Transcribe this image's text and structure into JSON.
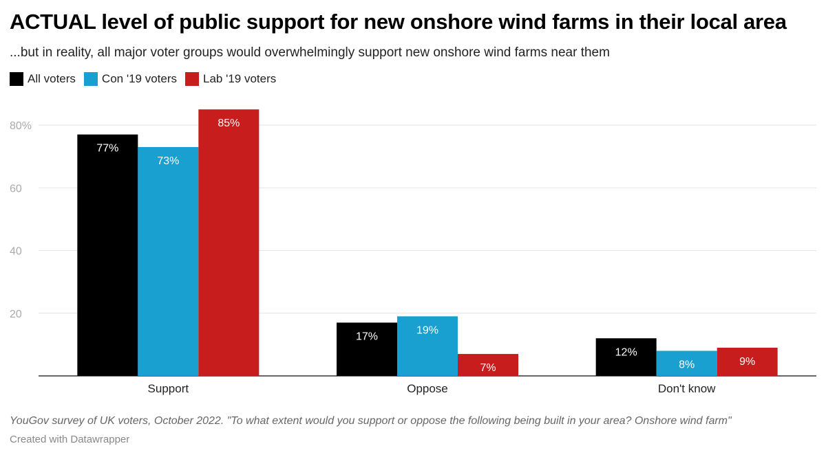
{
  "title": "ACTUAL level of public support for new onshore wind farms in their local area",
  "subtitle": "...but in reality, all major voter groups would overwhelmingly support new onshore wind farms near them",
  "footer": {
    "source": "YouGov survey of UK voters, October 2022. \"To what extent would you support or oppose the following being built in your area? Onshore wind farm\"",
    "credit": "Created with Datawrapper"
  },
  "chart_data": {
    "type": "bar",
    "title": "ACTUAL level of public support for new onshore wind farms in their local area",
    "xlabel": "",
    "ylabel": "",
    "ylim": [
      0,
      80
    ],
    "yticks": [
      {
        "value": 20,
        "label": "20"
      },
      {
        "value": 40,
        "label": "40"
      },
      {
        "value": 60,
        "label": "60"
      },
      {
        "value": 80,
        "label": "80%"
      }
    ],
    "grid": true,
    "legend_position": "top-left",
    "categories": [
      "Support",
      "Oppose",
      "Don't know"
    ],
    "series": [
      {
        "name": "All voters",
        "color": "#000000",
        "values": [
          77,
          17,
          12
        ],
        "labels": [
          "77%",
          "17%",
          "12%"
        ]
      },
      {
        "name": "Con '19 voters",
        "color": "#1aa0d0",
        "values": [
          73,
          19,
          8
        ],
        "labels": [
          "73%",
          "19%",
          "8%"
        ]
      },
      {
        "name": "Lab '19 voters",
        "color": "#c71e1d",
        "values": [
          85,
          7,
          9
        ],
        "labels": [
          "85%",
          "7%",
          "9%"
        ]
      }
    ]
  }
}
